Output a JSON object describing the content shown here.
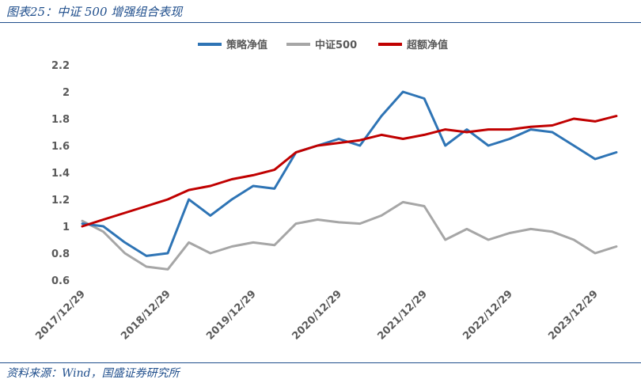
{
  "header": {
    "title": "图表25：中证 500 增强组合表现"
  },
  "footer": {
    "source": "资料来源：Wind，国盛证券研究所"
  },
  "chart_data": {
    "type": "line",
    "title": "",
    "xlabel": "",
    "ylabel": "",
    "ylim": [
      0.6,
      2.2
    ],
    "yticks": [
      "0.6",
      "0.8",
      "1",
      "1.2",
      "1.4",
      "1.6",
      "1.8",
      "2",
      "2.2"
    ],
    "xticks": [
      "2017/12/29",
      "2018/12/29",
      "2019/12/29",
      "2020/12/29",
      "2021/12/29",
      "2022/12/29",
      "2023/12/29"
    ],
    "legend": "top-center",
    "grid": false,
    "x": [
      "2017/12/29",
      "2018/03/29",
      "2018/06/29",
      "2018/09/29",
      "2018/12/29",
      "2019/03/29",
      "2019/06/29",
      "2019/09/29",
      "2019/12/29",
      "2020/03/29",
      "2020/06/29",
      "2020/09/29",
      "2020/12/29",
      "2021/03/29",
      "2021/06/29",
      "2021/09/29",
      "2021/12/29",
      "2022/03/29",
      "2022/06/29",
      "2022/09/29",
      "2022/12/29",
      "2023/03/29",
      "2023/06/29",
      "2023/09/29",
      "2023/12/29",
      "2024/03/29"
    ],
    "series": [
      {
        "name": "策略净值",
        "color": "#2e74b5",
        "values": [
          1.02,
          1.0,
          0.88,
          0.78,
          0.8,
          1.2,
          1.08,
          1.2,
          1.3,
          1.28,
          1.55,
          1.6,
          1.65,
          1.6,
          1.82,
          2.0,
          1.95,
          1.6,
          1.72,
          1.6,
          1.65,
          1.72,
          1.7,
          1.6,
          1.5,
          1.55
        ]
      },
      {
        "name": "中证500",
        "color": "#a6a6a6",
        "values": [
          1.04,
          0.96,
          0.8,
          0.7,
          0.68,
          0.88,
          0.8,
          0.85,
          0.88,
          0.86,
          1.02,
          1.05,
          1.03,
          1.02,
          1.08,
          1.18,
          1.15,
          0.9,
          0.98,
          0.9,
          0.95,
          0.98,
          0.96,
          0.9,
          0.8,
          0.85
        ]
      },
      {
        "name": "超额净值",
        "color": "#c00000",
        "values": [
          1.0,
          1.05,
          1.1,
          1.15,
          1.2,
          1.27,
          1.3,
          1.35,
          1.38,
          1.42,
          1.55,
          1.6,
          1.62,
          1.64,
          1.68,
          1.65,
          1.68,
          1.72,
          1.7,
          1.72,
          1.72,
          1.74,
          1.75,
          1.8,
          1.78,
          1.82
        ]
      }
    ]
  }
}
